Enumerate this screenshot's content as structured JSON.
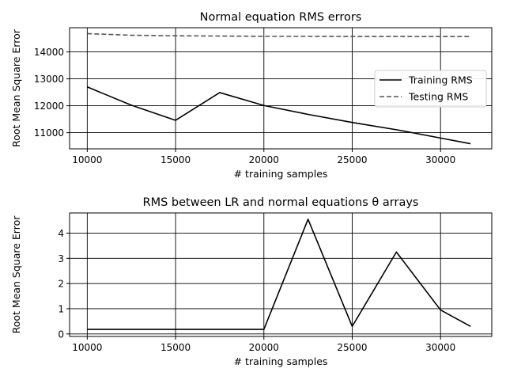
{
  "chart_data": [
    {
      "type": "line",
      "title": "Normal equation RMS errors",
      "xlabel": "# training samples",
      "ylabel": "Root Mean Square Error",
      "xlim": [
        9000,
        32900
      ],
      "ylim": [
        10400,
        14900
      ],
      "xticks": [
        10000,
        15000,
        20000,
        25000,
        30000
      ],
      "yticks": [
        11000,
        12000,
        13000,
        14000
      ],
      "grid": true,
      "legend": "right",
      "series": [
        {
          "name": "Training RMS",
          "color": "#000000",
          "dash": "solid",
          "x": [
            10000,
            12500,
            15000,
            17500,
            20000,
            22500,
            25000,
            27500,
            30000,
            31700
          ],
          "y": [
            12700,
            12020,
            11460,
            12490,
            12010,
            11680,
            11380,
            11110,
            10800,
            10590
          ]
        },
        {
          "name": "Testing RMS",
          "color": "#555555",
          "dash": "dashed",
          "x": [
            10000,
            12500,
            15000,
            17500,
            20000,
            22500,
            25000,
            27500,
            30000,
            31700
          ],
          "y": [
            14680,
            14620,
            14600,
            14590,
            14580,
            14580,
            14575,
            14575,
            14570,
            14570
          ]
        }
      ]
    },
    {
      "type": "line",
      "title": "RMS between LR and normal equations θ arrays",
      "xlabel": "# training samples",
      "ylabel": "Root Mean Square Error",
      "xlim": [
        9000,
        32900
      ],
      "ylim": [
        -0.1,
        4.8
      ],
      "xticks": [
        10000,
        15000,
        20000,
        25000,
        30000
      ],
      "yticks": [
        0,
        1,
        2,
        3,
        4
      ],
      "grid": true,
      "series": [
        {
          "color": "#000000",
          "dash": "solid",
          "x": [
            10000,
            12500,
            15000,
            17500,
            20000,
            22500,
            25000,
            27500,
            30000,
            31700
          ],
          "y": [
            0.18,
            0.18,
            0.18,
            0.18,
            0.18,
            4.55,
            0.3,
            3.25,
            0.95,
            0.3
          ]
        }
      ]
    }
  ]
}
